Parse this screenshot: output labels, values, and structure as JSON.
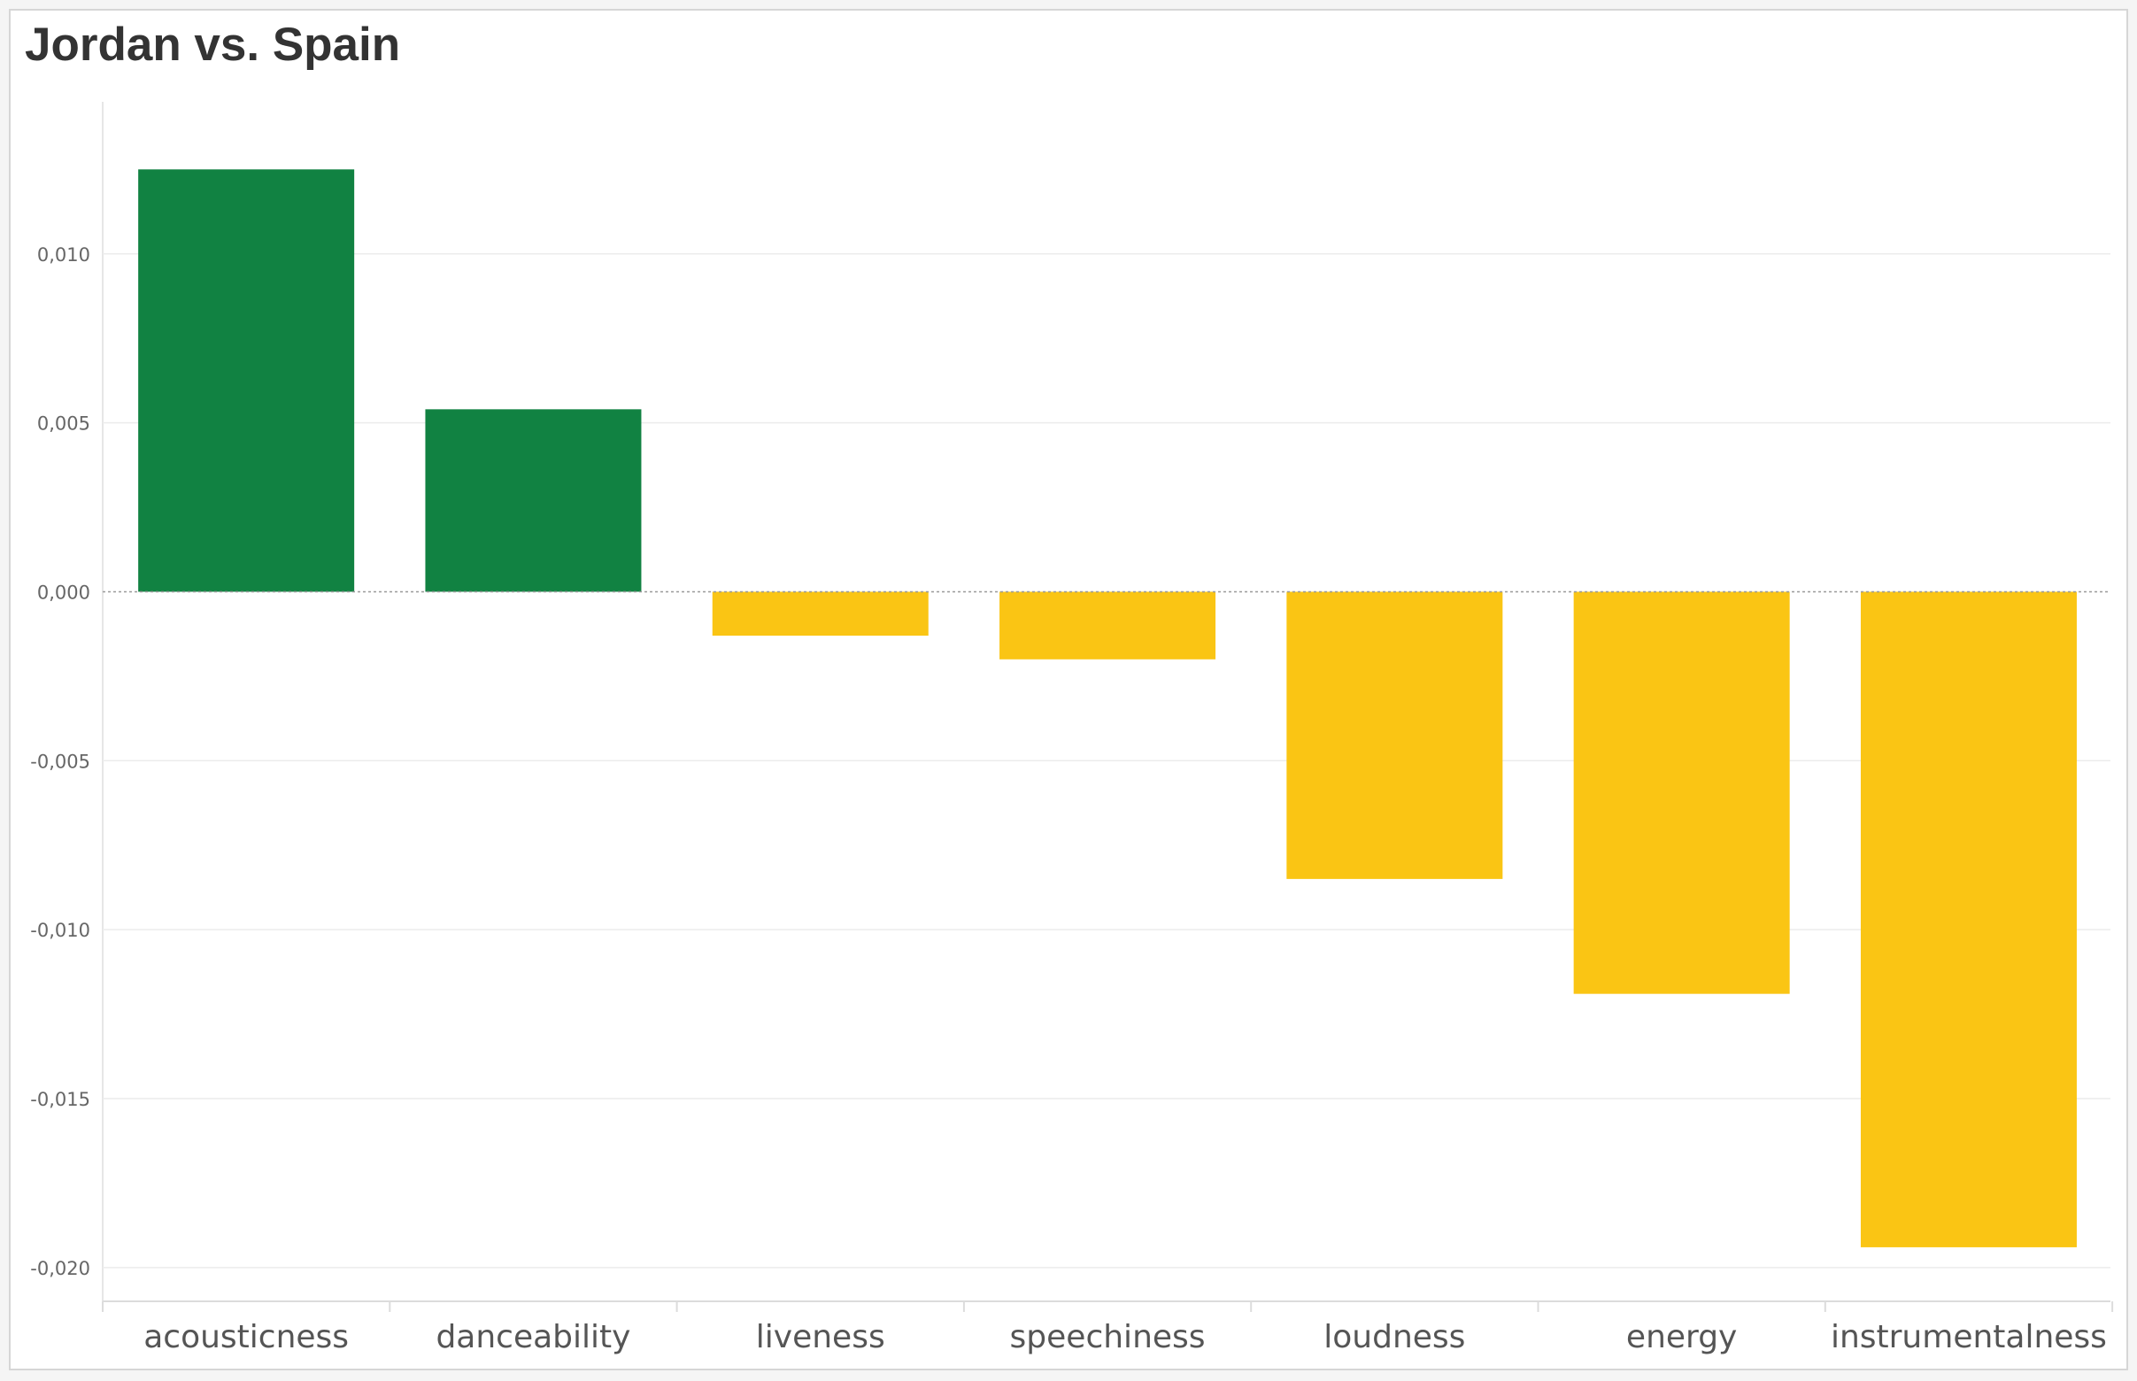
{
  "chart_data": {
    "type": "bar",
    "title": "Jordan vs. Spain",
    "xlabel": "",
    "ylabel": "",
    "categories": [
      "acousticness",
      "danceability",
      "liveness",
      "speechiness",
      "loudness",
      "energy",
      "instrumentalness"
    ],
    "values": [
      0.0125,
      0.0054,
      -0.0013,
      -0.002,
      -0.0085,
      -0.0119,
      -0.0194
    ],
    "ylim": [
      -0.021,
      0.0145
    ],
    "yticks": [
      0.01,
      0.005,
      0.0,
      -0.005,
      -0.01,
      -0.015,
      -0.02
    ],
    "ytick_labels": [
      "0,010",
      "0,005",
      "0,000",
      "-0,005",
      "-0,010",
      "-0,015",
      "-0,020"
    ],
    "colors": {
      "positive": "#118242",
      "negative": "#fac514",
      "gridline": "#ececec",
      "zero_line": "#9a9a9a"
    },
    "grid": true,
    "legend": "none"
  }
}
